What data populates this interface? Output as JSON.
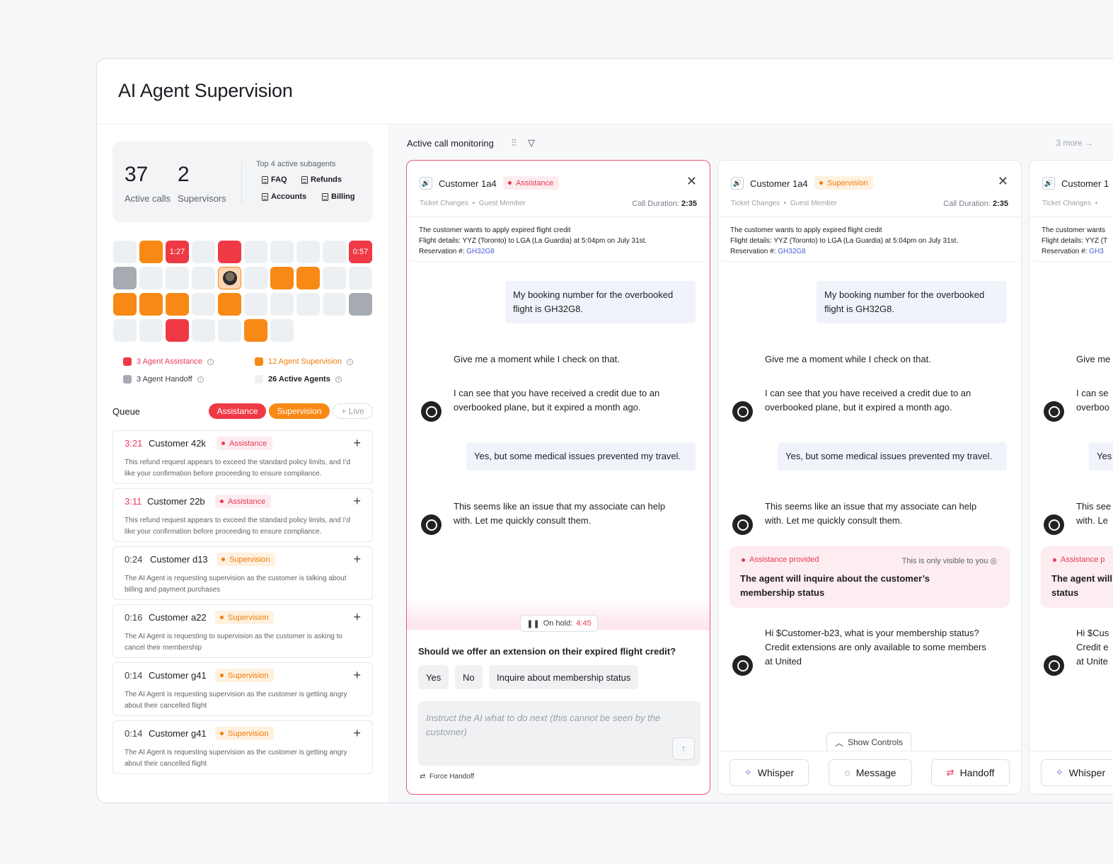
{
  "app": {
    "title": "AI Agent Supervision"
  },
  "stats": {
    "active_calls": "37",
    "active_calls_label": "Active calls",
    "supervisors": "2",
    "supervisors_label": "Supervisors",
    "subagents_title": "Top 4 active subagents",
    "subagents": [
      "FAQ",
      "Refunds",
      "Accounts",
      "Billing"
    ]
  },
  "grid_timers": {
    "t1": "1:27",
    "t2": "0:57"
  },
  "legend": {
    "assistance": "3 Agent Assistance",
    "supervision": "12 Agent Supervision",
    "handoff": "3 Agent Handoff",
    "active": "26 Active Agents"
  },
  "colors": {
    "assistance": "#ef3a46",
    "supervision": "#f98915",
    "handoff": "#a6abb2",
    "idle": "#edf0f3"
  },
  "queue": {
    "title": "Queue",
    "filters": [
      "Assistance",
      "Supervision",
      "+ Live"
    ],
    "items": [
      {
        "time": "3:21",
        "name": "Customer 42k",
        "tag": "Assistance",
        "desc": "This refund request appears to exceed the standard policy limits, and I’d like your confirmation before proceeding to ensure compliance."
      },
      {
        "time": "3:11",
        "name": "Customer 22b",
        "tag": "Assistance",
        "desc": "This refund request appears to exceed the standard policy limits, and I’d like your confirmation before proceeding to ensure compliance."
      },
      {
        "time": "0:24",
        "name": "Customer d13",
        "tag": "Supervision",
        "desc": "The AI Agent is requesting supervision as the customer is talking about billing and payment purchases"
      },
      {
        "time": "0:16",
        "name": "Customer a22",
        "tag": "Supervision",
        "desc": "The AI Agent is requesting to supervision as the customer is asking to cancel their membership"
      },
      {
        "time": "0:14",
        "name": "Customer g41",
        "tag": "Supervision",
        "desc": "The AI Agent is requesting supervision as the customer is getting angry about their cancelled flight"
      },
      {
        "time": "0:14",
        "name": "Customer g41",
        "tag": "Supervision",
        "desc": "The AI Agent is requesting supervision as the customer is getting angry about their cancelled flight"
      }
    ]
  },
  "monitor": {
    "title": "Active call monitoring",
    "more": "3 more →"
  },
  "card1": {
    "customer": "Customer 1a4",
    "tag": "Assistance",
    "meta1": "Ticket Changes",
    "meta2": "Guest Member",
    "duration_label": "Call Duration:",
    "duration": "2:35",
    "summary1": "The customer wants to apply expired flight credit",
    "summary2": "Flight details: YYZ (Toronto) to LGA (La Guardia) at 5:04pm on July 31st.",
    "summary3": "Reservation #:",
    "reservation": "GH32G8",
    "m1": "My booking number for the overbooked flight is GH32G8.",
    "m2": "Give me a moment while I check on that.",
    "m3": "I can see that you have received a credit due to an overbooked plane, but it expired a month ago.",
    "m4": "Yes, but some medical issues prevented my travel.",
    "m5": "This seems like an issue that my associate can help with. Let me quickly consult them.",
    "onhold_label": "On hold:",
    "onhold": "4:45",
    "question": "Should we offer an extension on their expired flight credit?",
    "options": [
      "Yes",
      "No",
      "Inquire about membership status"
    ],
    "placeholder": "Instruct the AI what to do next (this cannot be seen by the customer)",
    "force": "Force Handoff"
  },
  "card2": {
    "customer": "Customer 1a4",
    "tag": "Supervision",
    "meta1": "Ticket Changes",
    "meta2": "Guest Member",
    "duration_label": "Call Duration:",
    "duration": "2:35",
    "summary1": "The customer wants to apply expired flight credit",
    "summary2": "Flight details: YYZ (Toronto) to LGA (La Guardia) at 5:04pm on July 31st.",
    "summary3": "Reservation #:",
    "reservation": "GH32G8",
    "m1": "My booking number for the overbooked flight is GH32G8.",
    "m2": "Give me a moment while I check on that.",
    "m3": "I can see that you have received a credit due to an overbooked plane, but it expired a month ago.",
    "m4": "Yes, but some medical issues prevented my travel.",
    "m5": "This seems like an issue that my associate can help with. Let me quickly consult them.",
    "assist_label": "Assistance provided",
    "assist_vis": "This is only visible to you",
    "assist_text": "The agent will inquire about the customer’s membership status",
    "m6": "Hi $Customer-b23, what is your membership status? Credit extensions are only available to some members at United",
    "show_controls": "Show Controls",
    "whisper": "Whisper",
    "message": "Message",
    "handoff": "Handoff"
  },
  "card3": {
    "customer": "Customer 1",
    "meta1": "Ticket Changes",
    "summary1": "The customer wants",
    "summary2": "Flight details: YYZ (T",
    "summary3": "Reservation #:",
    "reservation": "GH3",
    "m2": "Give me",
    "m3a": "I can se",
    "m3b": "overboo",
    "m4": "Yes",
    "m5a": "This see",
    "m5b": "with. Le",
    "assist_label": "Assistance p",
    "assist_a": "The agent will",
    "assist_b": "status",
    "m6a": "Hi $Cus",
    "m6b": "Credit e",
    "m6c": "at Unite",
    "whisper": "Whisper"
  }
}
